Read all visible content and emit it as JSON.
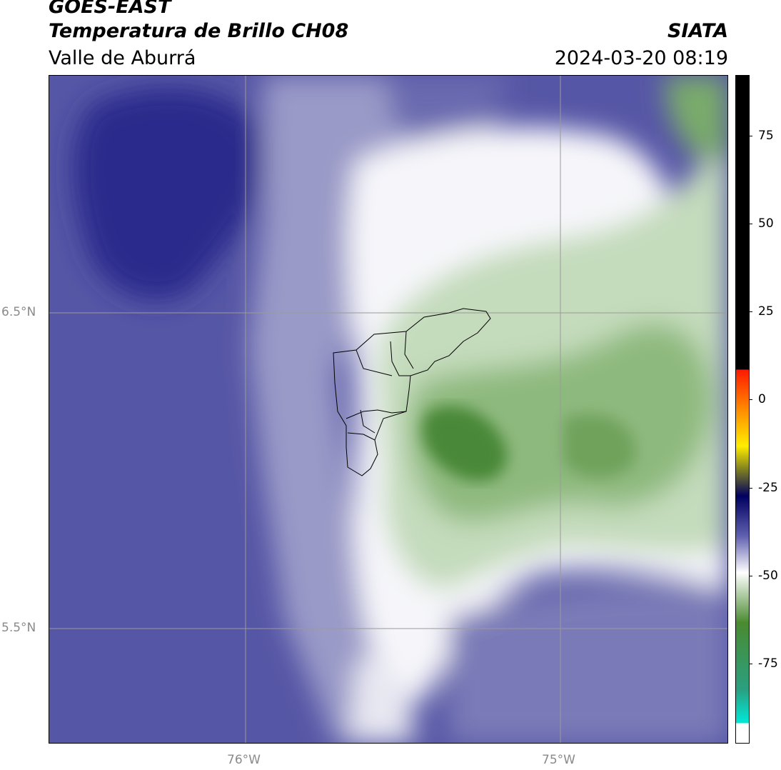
{
  "header": {
    "line1": "GOES-EAST",
    "line2": "Temperatura de Brillo CH08",
    "region": "Valle de Aburrá",
    "brand": "SIATA",
    "datetime": "2024-03-20 08:19"
  },
  "map": {
    "lat_labels": [
      "6.5°N",
      "5.5°N"
    ],
    "lon_labels": [
      "76°W",
      "75°W"
    ],
    "colors": {
      "cold_blue": "#2a2a8a",
      "mid_blue": "#5a5aaa",
      "light_lavender": "#b8b8d8",
      "white": "#ffffff",
      "light_green": "#c8dcc0",
      "mid_green": "#8ab87a",
      "dark_green": "#4f8a3a"
    }
  },
  "colorbar": {
    "ticks": [
      "75",
      "50",
      "25",
      "0",
      "-25",
      "-50",
      "-75"
    ],
    "colors": [
      "#000000",
      "#ff2a00",
      "#ff9900",
      "#ffee00",
      "#7a7a2a",
      "#000066",
      "#4040a0",
      "#ffffff",
      "#3a8a2a",
      "#00e0d0"
    ]
  }
}
